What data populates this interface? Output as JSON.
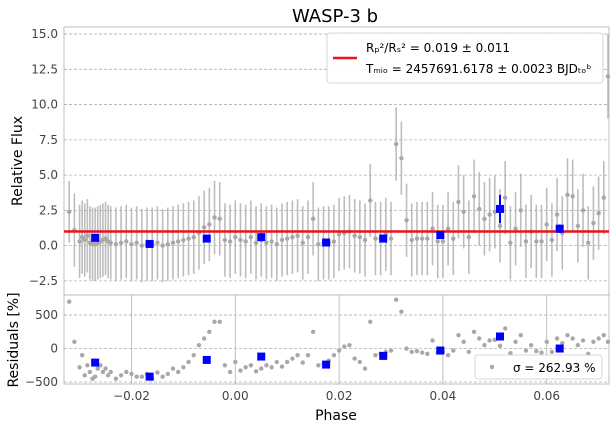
{
  "title": "WASP-3 b",
  "chart_data": [
    {
      "type": "scatter",
      "panel": "main",
      "title": "WASP-3 b",
      "xlabel": "",
      "ylabel": "Relative Flux",
      "xlim": [
        -0.033,
        0.072
      ],
      "ylim": [
        -3.5,
        15.5
      ],
      "yticks": [
        -2.5,
        0.0,
        2.5,
        5.0,
        7.5,
        10.0,
        12.5,
        15.0
      ],
      "ytick_labels": [
        "−2.5",
        "0.0",
        "2.5",
        "5.0",
        "7.5",
        "10.0",
        "12.5",
        "15.0"
      ],
      "grid": true,
      "legend_position": "top-right",
      "legend": {
        "ratio_label": "Rₚ²/Rₛ² = 0.019 ± 0.011",
        "tmid_label": "Tₘᵢₒ = 2457691.6178 ± 0.0023 BJDₜₒᵇ"
      },
      "model_line": {
        "y": 1.0,
        "color": "#e8141a"
      },
      "raw_points": {
        "color": "#a8a8a8",
        "x": [
          -0.032,
          -0.031,
          -0.03,
          -0.0295,
          -0.029,
          -0.0285,
          -0.028,
          -0.0275,
          -0.027,
          -0.0265,
          -0.026,
          -0.0255,
          -0.025,
          -0.0245,
          -0.024,
          -0.023,
          -0.022,
          -0.021,
          -0.02,
          -0.019,
          -0.018,
          -0.017,
          -0.016,
          -0.015,
          -0.014,
          -0.013,
          -0.012,
          -0.011,
          -0.01,
          -0.009,
          -0.008,
          -0.007,
          -0.006,
          -0.005,
          -0.004,
          -0.003,
          -0.002,
          -0.001,
          0.0,
          0.001,
          0.002,
          0.003,
          0.004,
          0.005,
          0.006,
          0.007,
          0.008,
          0.009,
          0.01,
          0.011,
          0.012,
          0.013,
          0.014,
          0.015,
          0.016,
          0.017,
          0.018,
          0.019,
          0.02,
          0.021,
          0.022,
          0.023,
          0.024,
          0.025,
          0.026,
          0.027,
          0.028,
          0.029,
          0.03,
          0.031,
          0.032,
          0.033,
          0.034,
          0.035,
          0.036,
          0.037,
          0.038,
          0.039,
          0.04,
          0.041,
          0.042,
          0.043,
          0.044,
          0.045,
          0.046,
          0.047,
          0.048,
          0.049,
          0.05,
          0.051,
          0.052,
          0.053,
          0.054,
          0.055,
          0.056,
          0.057,
          0.058,
          0.059,
          0.06,
          0.061,
          0.062,
          0.063,
          0.064,
          0.065,
          0.066,
          0.067,
          0.068,
          0.069,
          0.07,
          0.071,
          0.0718
        ],
        "y": [
          2.4,
          1.1,
          0.3,
          0.6,
          0.4,
          0.7,
          0.2,
          0.1,
          0.1,
          0.2,
          0.3,
          0.4,
          0.5,
          0.3,
          0.2,
          0.1,
          0.2,
          0.3,
          0.1,
          0.2,
          0.0,
          0.1,
          0.1,
          0.2,
          0.0,
          0.1,
          0.2,
          0.3,
          0.4,
          0.5,
          0.6,
          0.9,
          1.3,
          1.5,
          2.0,
          1.9,
          0.4,
          0.3,
          0.6,
          0.4,
          0.3,
          0.6,
          0.2,
          0.4,
          0.2,
          0.3,
          0.1,
          0.4,
          0.5,
          0.6,
          0.7,
          0.2,
          0.6,
          1.9,
          0.1,
          0.2,
          0.2,
          0.3,
          0.8,
          0.9,
          1.0,
          0.7,
          0.6,
          0.4,
          3.2,
          0.5,
          0.5,
          0.8,
          0.5,
          7.2,
          6.2,
          1.8,
          0.4,
          0.5,
          0.5,
          0.5,
          1.2,
          0.3,
          0.3,
          1.2,
          0.5,
          3.1,
          2.4,
          0.6,
          3.5,
          2.6,
          1.9,
          2.2,
          2.4,
          1.4,
          3.4,
          0.2,
          1.2,
          2.5,
          0.3,
          1.0,
          0.3,
          0.3,
          1.5,
          0.4,
          2.2,
          0.9,
          3.6,
          3.5,
          1.4,
          2.5,
          0.2,
          1.6,
          2.3,
          3.4,
          12.0
        ],
        "err": [
          2.2,
          2.6,
          2.6,
          2.6,
          2.6,
          2.6,
          2.6,
          2.6,
          2.6,
          2.6,
          2.6,
          2.6,
          2.6,
          2.6,
          2.6,
          2.6,
          2.6,
          2.6,
          2.6,
          2.6,
          2.6,
          2.6,
          2.6,
          2.6,
          2.6,
          2.6,
          2.6,
          2.6,
          2.6,
          2.6,
          2.6,
          2.6,
          2.6,
          2.6,
          2.6,
          2.6,
          2.6,
          2.6,
          2.6,
          2.6,
          2.6,
          2.6,
          2.6,
          2.6,
          2.6,
          2.6,
          2.6,
          2.6,
          2.6,
          2.6,
          2.6,
          2.6,
          2.6,
          2.6,
          2.6,
          2.6,
          2.6,
          2.6,
          2.6,
          2.6,
          2.6,
          2.6,
          2.6,
          2.6,
          2.6,
          2.6,
          2.6,
          2.6,
          2.6,
          2.6,
          2.6,
          2.6,
          2.6,
          2.6,
          2.6,
          2.6,
          2.6,
          2.6,
          2.6,
          2.6,
          2.6,
          2.6,
          2.6,
          2.6,
          2.6,
          2.6,
          2.6,
          2.6,
          2.6,
          2.6,
          2.6,
          2.6,
          2.6,
          2.6,
          2.6,
          2.6,
          2.6,
          2.6,
          2.6,
          2.6,
          2.6,
          2.6,
          2.6,
          2.6,
          2.6,
          2.6,
          2.6,
          2.6,
          2.6,
          2.6,
          3.0
        ]
      },
      "binned_points": {
        "color": "#0000ff",
        "x": [
          -0.027,
          -0.0165,
          -0.0055,
          0.005,
          0.0175,
          0.0285,
          0.0395,
          0.051,
          0.0625
        ],
        "y": [
          0.55,
          0.12,
          0.5,
          0.6,
          0.22,
          0.5,
          0.75,
          2.6,
          1.2
        ],
        "err": [
          0.2,
          0.2,
          0.2,
          0.2,
          0.2,
          0.2,
          0.2,
          1.0,
          0.3
        ]
      }
    },
    {
      "type": "scatter",
      "panel": "residuals",
      "xlabel": "Phase",
      "ylabel": "Residuals [%]",
      "xlim": [
        -0.033,
        0.072
      ],
      "ylim": [
        -530,
        800
      ],
      "xticks": [
        -0.02,
        0.0,
        0.02,
        0.04,
        0.06
      ],
      "xtick_labels": [
        "−0.02",
        "0.00",
        "0.02",
        "0.04",
        "0.06"
      ],
      "yticks": [
        -500,
        0,
        500
      ],
      "ytick_labels": [
        "−500",
        "0",
        "500"
      ],
      "grid": true,
      "legend_position": "bottom-right",
      "legend": {
        "sigma_label": "σ = 262.93 %"
      },
      "raw_points": {
        "color": "#a8a8a8",
        "x": [
          -0.032,
          -0.031,
          -0.03,
          -0.0295,
          -0.029,
          -0.0285,
          -0.028,
          -0.0275,
          -0.027,
          -0.0265,
          -0.026,
          -0.0255,
          -0.025,
          -0.0245,
          -0.024,
          -0.023,
          -0.022,
          -0.021,
          -0.02,
          -0.019,
          -0.018,
          -0.017,
          -0.016,
          -0.015,
          -0.014,
          -0.013,
          -0.012,
          -0.011,
          -0.01,
          -0.009,
          -0.008,
          -0.007,
          -0.006,
          -0.005,
          -0.004,
          -0.003,
          -0.002,
          -0.001,
          0.0,
          0.001,
          0.002,
          0.003,
          0.004,
          0.005,
          0.006,
          0.007,
          0.008,
          0.009,
          0.01,
          0.011,
          0.012,
          0.013,
          0.014,
          0.015,
          0.016,
          0.017,
          0.018,
          0.019,
          0.02,
          0.021,
          0.022,
          0.023,
          0.024,
          0.025,
          0.026,
          0.027,
          0.028,
          0.029,
          0.03,
          0.031,
          0.032,
          0.033,
          0.034,
          0.035,
          0.036,
          0.037,
          0.038,
          0.039,
          0.04,
          0.041,
          0.042,
          0.043,
          0.044,
          0.045,
          0.046,
          0.047,
          0.048,
          0.049,
          0.05,
          0.051,
          0.052,
          0.053,
          0.054,
          0.055,
          0.056,
          0.057,
          0.058,
          0.059,
          0.06,
          0.061,
          0.062,
          0.063,
          0.064,
          0.065,
          0.066,
          0.067,
          0.068,
          0.069,
          0.07,
          0.071,
          0.0718
        ],
        "y": [
          700,
          100,
          -280,
          -100,
          -400,
          -250,
          -350,
          -450,
          -420,
          -300,
          -250,
          -350,
          -300,
          -400,
          -350,
          -450,
          -400,
          -350,
          -380,
          -420,
          -420,
          -380,
          -450,
          -360,
          -420,
          -380,
          -300,
          -350,
          -280,
          -200,
          -100,
          50,
          150,
          250,
          400,
          400,
          -250,
          -350,
          -200,
          -330,
          -280,
          -250,
          -340,
          -300,
          -250,
          -280,
          -200,
          -270,
          -200,
          -150,
          -100,
          -210,
          -100,
          250,
          -250,
          -230,
          -180,
          -100,
          -30,
          30,
          50,
          -150,
          -200,
          -300,
          400,
          -100,
          -80,
          -50,
          -30,
          730,
          550,
          0,
          -50,
          -40,
          -60,
          -80,
          120,
          -60,
          -50,
          -100,
          -30,
          200,
          100,
          -50,
          250,
          150,
          50,
          120,
          130,
          40,
          300,
          -70,
          100,
          200,
          -30,
          50,
          -40,
          -60,
          100,
          -50,
          150,
          80,
          200,
          150,
          50,
          120,
          -80,
          100,
          150,
          200,
          100
        ],
        "err": []
      },
      "binned_points": {
        "color": "#0000ff",
        "x": [
          -0.027,
          -0.0165,
          -0.0055,
          0.005,
          0.0175,
          0.0285,
          0.0395,
          0.051,
          0.0625
        ],
        "y": [
          -210,
          -420,
          -170,
          -120,
          -240,
          -110,
          -30,
          180,
          0
        ],
        "err": []
      }
    }
  ]
}
